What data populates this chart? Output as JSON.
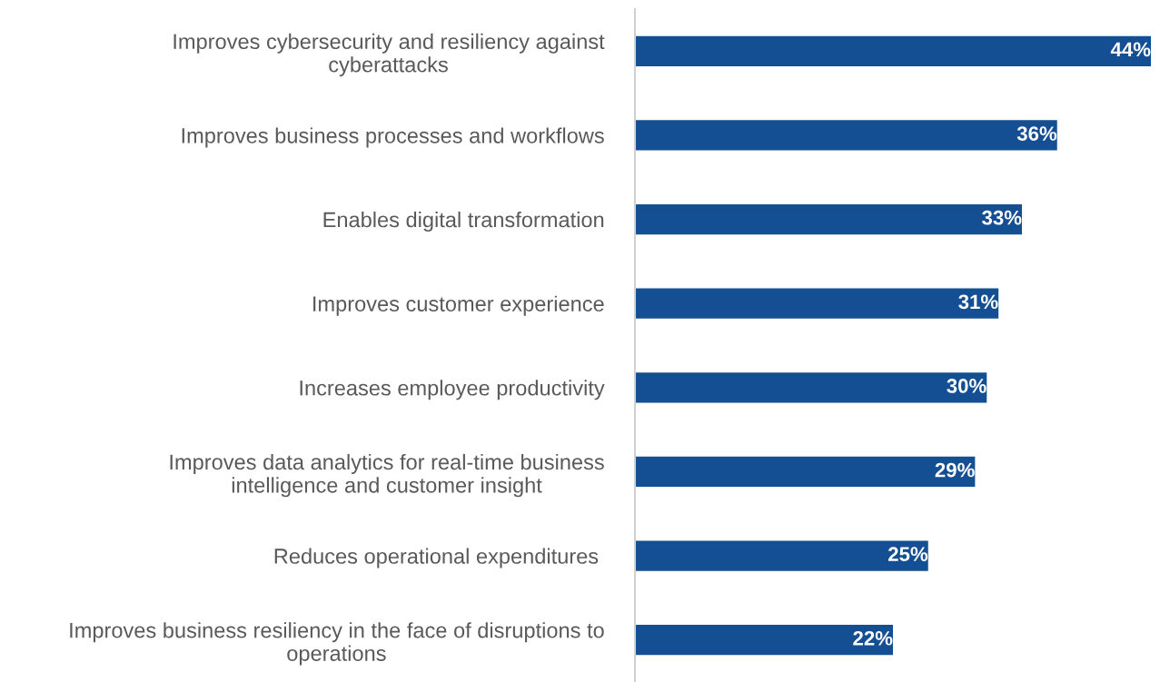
{
  "chart_data": {
    "type": "bar",
    "orientation": "horizontal",
    "categories": [
      "Improves cybersecurity and resiliency against\ncyberattacks",
      "Improves business processes and workflows",
      "Enables digital transformation",
      "Improves customer experience",
      "Increases employee productivity",
      "Improves data analytics for real-time business\nintelligence and customer insight",
      "Reduces operational expenditures ",
      "Improves business resiliency in the face of disruptions to\noperations"
    ],
    "values": [
      44,
      36,
      33,
      31,
      30,
      29,
      25,
      22
    ],
    "value_labels": [
      "44%",
      "36%",
      "33%",
      "31%",
      "30%",
      "29%",
      "25%",
      "22%"
    ],
    "color": "#154f93",
    "grid": false,
    "legend": false
  }
}
